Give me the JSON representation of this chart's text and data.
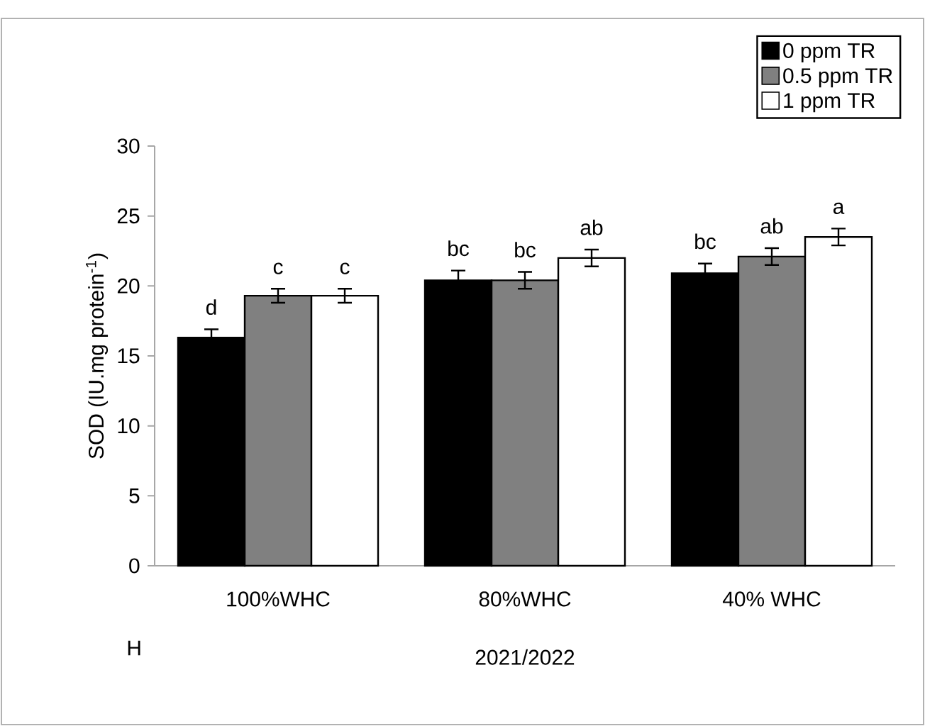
{
  "chart_data": {
    "type": "bar",
    "xlabel": "2021/2022",
    "ylabel": "SOD (IU.mg protein$^{-1}$)",
    "categories": [
      "100%WHC",
      "80%WHC",
      "40% WHC"
    ],
    "series": [
      {
        "name": "0 ppm TR",
        "color": "#000000",
        "values": [
          16.3,
          20.4,
          20.9
        ],
        "errors": [
          0.6,
          0.7,
          0.7
        ],
        "value_labels": [
          "d",
          "bc",
          "bc"
        ]
      },
      {
        "name": "0.5 ppm TR",
        "color": "#808080",
        "values": [
          19.3,
          20.4,
          22.1
        ],
        "errors": [
          0.5,
          0.6,
          0.6
        ],
        "value_labels": [
          "c",
          "bc",
          "ab"
        ]
      },
      {
        "name": "1 ppm TR",
        "color": "#ffffff",
        "values": [
          19.3,
          22.0,
          23.5
        ],
        "errors": [
          0.5,
          0.6,
          0.6
        ],
        "value_labels": [
          "c",
          "ab",
          "a"
        ]
      }
    ],
    "ylim": [
      0,
      30
    ],
    "yticks": [
      0,
      5,
      10,
      15,
      20,
      25,
      30
    ],
    "grid": false,
    "legend": "top right",
    "annotations": [
      "H"
    ]
  }
}
